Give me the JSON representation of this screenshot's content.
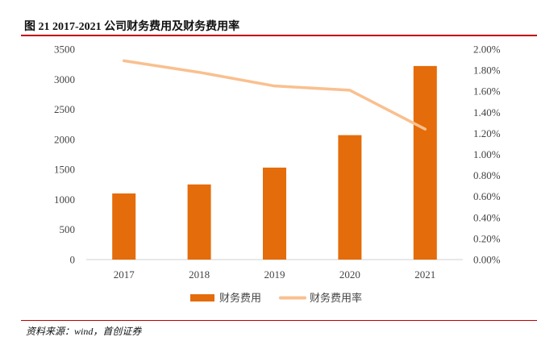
{
  "header": {
    "title": "图 21 2017-2021 公司财务费用及财务费用率"
  },
  "footer": {
    "source": "资料来源：wind，首创证券"
  },
  "colors": {
    "bar": "#e46c0a",
    "line": "#f9c08f",
    "accent_rule": "#c00000",
    "axis": "#d0d0d0"
  },
  "chart_data": {
    "type": "bar",
    "title": "2017-2021 公司财务费用及财务费用率",
    "categories": [
      "2017",
      "2018",
      "2019",
      "2020",
      "2021"
    ],
    "series": [
      {
        "name": "财务费用",
        "type": "bar",
        "axis": "left",
        "values": [
          1100,
          1250,
          1530,
          2070,
          3220
        ]
      },
      {
        "name": "财务费用率",
        "type": "line",
        "axis": "right",
        "values": [
          1.89,
          1.78,
          1.65,
          1.61,
          1.24
        ]
      }
    ],
    "y_left": {
      "min": 0,
      "max": 3500,
      "step": 500,
      "ticks": [
        "0",
        "500",
        "1000",
        "1500",
        "2000",
        "2500",
        "3000",
        "3500"
      ]
    },
    "y_right": {
      "min": 0,
      "max": 2.0,
      "step": 0.2,
      "ticks": [
        "0.00%",
        "0.20%",
        "0.40%",
        "0.60%",
        "0.80%",
        "1.00%",
        "1.20%",
        "1.40%",
        "1.60%",
        "1.80%",
        "2.00%"
      ]
    },
    "legend": [
      "财务费用",
      "财务费用率"
    ],
    "legend_position": "bottom",
    "grid": false
  }
}
